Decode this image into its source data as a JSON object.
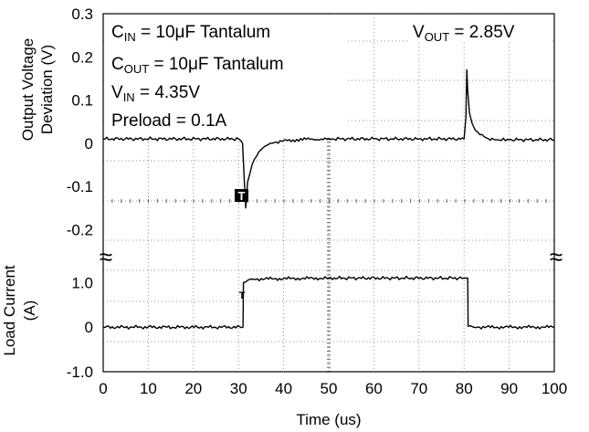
{
  "chart_data": {
    "type": "line",
    "xlabel": "Time (us)",
    "xlim": [
      0,
      100
    ],
    "x_ticks": [
      "0",
      "10",
      "20",
      "30",
      "40",
      "50",
      "60",
      "70",
      "80",
      "90",
      "100"
    ],
    "grid": true,
    "panels": [
      {
        "ylabel_lines": [
          "Output Voltage",
          "Deviation (V)"
        ],
        "ylim": [
          -0.25,
          0.3
        ],
        "y_ticks": [
          {
            "value": 0.3,
            "label": "0.3"
          },
          {
            "value": 0.2,
            "label": "0.2"
          },
          {
            "value": 0.1,
            "label": "0.1"
          },
          {
            "value": 0,
            "label": "0"
          },
          {
            "value": -0.1,
            "label": "-0.1"
          },
          {
            "value": -0.2,
            "label": "-0.2"
          }
        ],
        "series": [
          {
            "x": [
              0,
              30,
              30.9,
              31.3,
              31.6,
              32,
              33,
              34,
              35,
              36.5,
              38,
              40,
              45,
              50,
              60,
              70,
              80,
              80.4,
              80.6,
              80.8,
              81.2,
              81.8,
              82.5,
              83.5,
              85,
              87,
              90,
              100
            ],
            "values": [
              0.01,
              0.01,
              0.0,
              -0.09,
              -0.15,
              -0.09,
              -0.05,
              -0.03,
              -0.015,
              -0.004,
              0.002,
              0.006,
              0.009,
              0.01,
              0.01,
              0.01,
              0.01,
              0.06,
              0.17,
              0.12,
              0.07,
              0.045,
              0.03,
              0.02,
              0.012,
              0.008,
              0.008,
              0.008
            ]
          }
        ]
      },
      {
        "ylabel_lines": [
          "Load Current",
          "(A)"
        ],
        "ylim": [
          -1.0,
          1.5
        ],
        "y_ticks": [
          {
            "value": 1.0,
            "label": "1.0"
          },
          {
            "value": 0,
            "label": "0"
          },
          {
            "value": -1.0,
            "label": "-1.0"
          }
        ],
        "series": [
          {
            "x": [
              0,
              31,
              31.1,
              32,
              33,
              50,
              80,
              80.8,
              80.9,
              83,
              100
            ],
            "values": [
              0.0,
              0.0,
              1.0,
              1.05,
              1.08,
              1.1,
              1.1,
              1.1,
              0.02,
              0.0,
              0.0
            ]
          }
        ]
      }
    ],
    "annotations": [
      {
        "base": "C",
        "sub": "IN",
        "rest": " = 10μF Tantalum"
      },
      {
        "base": "C",
        "sub": "OUT",
        "rest": " = 10μF Tantalum"
      },
      {
        "base": "V",
        "sub": "IN",
        "rest": " = 4.35V"
      },
      {
        "base": "Preload = 0.1A",
        "sub": "",
        "rest": ""
      },
      {
        "base": "V",
        "sub": "OUT",
        "rest": " = 2.85V"
      }
    ],
    "markers": [
      "T",
      "T"
    ],
    "break_symbol": "≈",
    "colors": {
      "trace": "#000000",
      "grid": "#909090",
      "background": "#ffffff"
    }
  }
}
